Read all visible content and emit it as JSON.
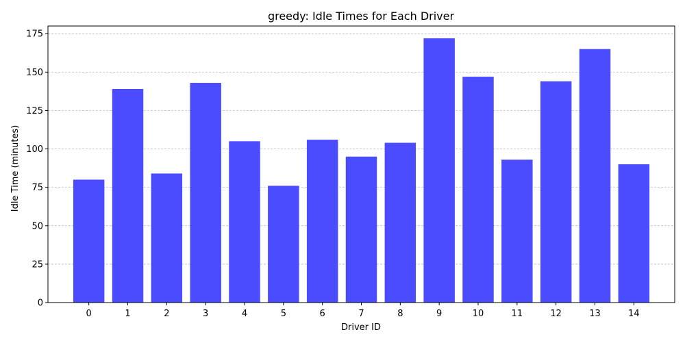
{
  "chart_data": {
    "type": "bar",
    "title": "greedy: Idle Times for Each Driver",
    "xlabel": "Driver ID",
    "ylabel": "Idle Time (minutes)",
    "categories": [
      "0",
      "1",
      "2",
      "3",
      "4",
      "5",
      "6",
      "7",
      "8",
      "9",
      "10",
      "11",
      "12",
      "13",
      "14"
    ],
    "values": [
      80,
      139,
      84,
      143,
      105,
      76,
      106,
      95,
      104,
      172,
      147,
      93,
      144,
      165,
      90
    ],
    "ylim": [
      0,
      180
    ],
    "yticks": [
      0,
      25,
      50,
      75,
      100,
      125,
      150,
      175
    ],
    "grid": "y-axis dashed",
    "bar_color": "#4b4bff",
    "grid_color": "#b0b0b0"
  }
}
